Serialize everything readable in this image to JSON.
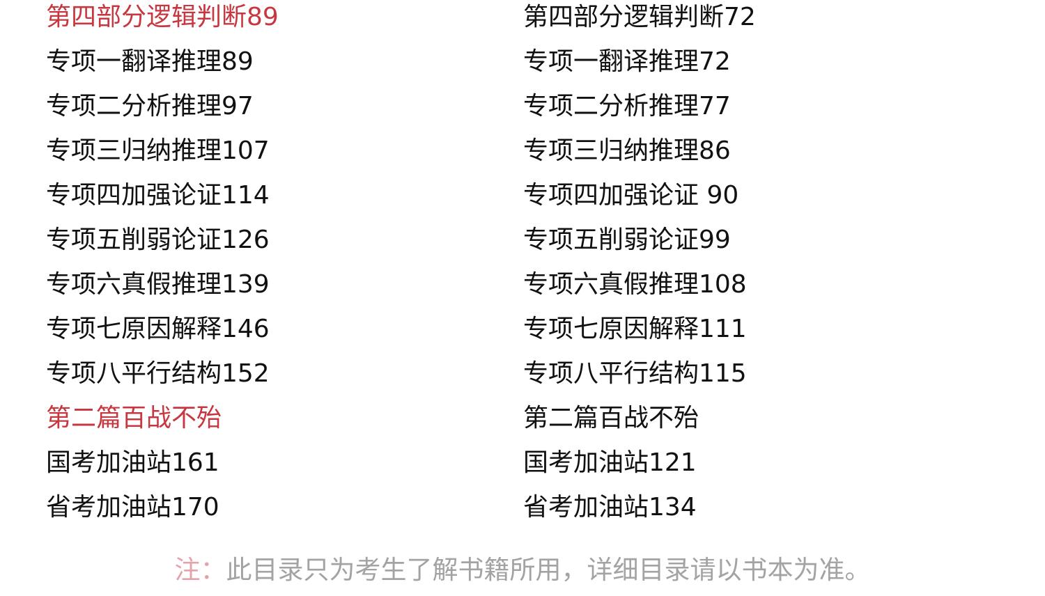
{
  "accent_color": "#c8373f",
  "left_column": [
    {
      "text": "第四部分逻辑判断89",
      "heading": true
    },
    {
      "text": "专项一翻译推理89"
    },
    {
      "text": "专项二分析推理97"
    },
    {
      "text": "专项三归纳推理107"
    },
    {
      "text": "专项四加强论证114"
    },
    {
      "text": "专项五削弱论证126"
    },
    {
      "text": "专项六真假推理139"
    },
    {
      "text": "专项七原因解释146"
    },
    {
      "text": "专项八平行结构152"
    },
    {
      "text": "第二篇百战不殆",
      "heading": true
    },
    {
      "text": "国考加油站161"
    },
    {
      "text": "省考加油站170"
    }
  ],
  "right_column": [
    {
      "text": "第四部分逻辑判断72",
      "heading": true
    },
    {
      "text": "专项一翻译推理72"
    },
    {
      "text": "专项二分析推理77"
    },
    {
      "text": "专项三归纳推理86"
    },
    {
      "text": "专项四加强论证 90"
    },
    {
      "text": "专项五削弱论证99"
    },
    {
      "text": "专项六真假推理108"
    },
    {
      "text": "专项七原因解释111"
    },
    {
      "text": "专项八平行结构115"
    },
    {
      "text": "第二篇百战不殆",
      "heading": true
    },
    {
      "text": "国考加油站121"
    },
    {
      "text": "省考加油站134"
    }
  ],
  "footer": {
    "note_label": "注：",
    "note_text": "此目录只为考生了解书籍所用，详细目录请以书本为准。"
  }
}
